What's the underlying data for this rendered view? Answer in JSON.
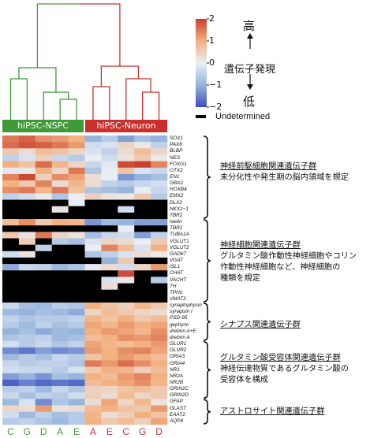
{
  "group_labels": {
    "nspc": "hiPSC-NSPC",
    "neuron": "hiPSC-Neuron"
  },
  "colors": {
    "nspc": "#3f9b35",
    "neuron": "#c9302c",
    "low": "#3b4cc0",
    "mid": "#e9eef5",
    "high": "#c8412e",
    "undetermined": "#000000"
  },
  "columns": {
    "nspc": [
      "C",
      "G",
      "D",
      "A",
      "E"
    ],
    "neuron": [
      "A",
      "E",
      "C",
      "G",
      "D"
    ]
  },
  "legend": {
    "ticks": [
      "2",
      "1",
      "0",
      "−1",
      "−2"
    ],
    "high_label": "高",
    "low_label": "低",
    "title": "遺伝子発現",
    "undetermined": "Undetermined"
  },
  "genes": [
    "SOX1",
    "PAX6",
    "BLBP",
    "NES",
    "FOXG1",
    "OTX2",
    "EN1",
    "GBX2",
    "HOXB4",
    "EMX2",
    "DLX2",
    "NKX2−1",
    "TBR2",
    "reelin",
    "TBR1",
    "TUBA1A",
    "VGLUT1",
    "VGLUT2",
    "GAD67",
    "VGAT",
    "ISL1",
    "CHAT",
    "VACHT",
    "TH",
    "TPH2",
    "VMAT2",
    "synaptophysin",
    "synapsin I",
    "PSD-95",
    "gephyrin",
    "drebrin A+E",
    "drebrin A",
    "GLUR1",
    "GLUR2",
    "GRIA3",
    "GRIA4",
    "NR1",
    "NR2A",
    "NR2B",
    "GRIN2C",
    "GRIN2D",
    "GFAP",
    "GLAST",
    "EAAT2",
    "AQP4"
  ],
  "annotations": [
    {
      "heading": "神経前駆細胞関連遺伝子群",
      "text": [
        "未分化性や発生期の脳内領域を規定"
      ]
    },
    {
      "heading": "神経細胞関連遺伝子群",
      "text": [
        "グルタミン酸作動性神経細胞やコリン",
        "作動性神経細胞など、神経細胞の",
        "種類を規定"
      ]
    },
    {
      "heading": "シナプス関連遺伝子群",
      "text": []
    },
    {
      "heading": "グルタミン酸受容体関連遺伝子群",
      "text": [
        "神経伝達物質であるグルタミン酸の",
        "受容体を構成"
      ]
    },
    {
      "heading": "アストロサイト関連遺伝子群",
      "text": []
    }
  ],
  "heatmap": [
    [
      1.5,
      1.7,
      1.3,
      1.2,
      1.0,
      -1.0,
      -0.6,
      -1.2,
      -0.8,
      -1.0
    ],
    [
      1.6,
      1.8,
      1.7,
      1.5,
      1.2,
      -0.3,
      -0.2,
      0.4,
      0.1,
      -0.5
    ],
    [
      0.6,
      0.3,
      0.8,
      0.7,
      0.4,
      -0.2,
      -0.5,
      0.3,
      0.8,
      0.4
    ],
    [
      -0.5,
      -0.2,
      0.5,
      -0.4,
      -0.6,
      0.0,
      -0.3,
      0.2,
      0.6,
      0.1
    ],
    [
      1.0,
      0.7,
      1.6,
      0.9,
      0.4,
      -0.4,
      -0.1,
      1.9,
      2.0,
      1.4
    ],
    [
      -0.1,
      0.1,
      1.0,
      0.4,
      1.5,
      -0.7,
      0.0,
      0.7,
      -0.2,
      -0.4
    ],
    [
      1.4,
      1.9,
      0.5,
      1.3,
      1.1,
      0.3,
      0.0,
      -1.3,
      -1.0,
      -0.8
    ],
    [
      1.0,
      0.6,
      1.4,
      0.3,
      0.9,
      0.3,
      -0.5,
      -0.6,
      -0.4,
      -0.3
    ],
    [
      1.3,
      1.5,
      0.9,
      1.5,
      0.7,
      -0.7,
      -0.8,
      -1.0,
      0.0,
      -0.4
    ],
    [
      -0.5,
      -0.3,
      0.1,
      -0.7,
      0.0,
      0.5,
      0.2,
      0.1,
      0.6,
      -0.6
    ],
    [
      null,
      null,
      null,
      null,
      0.0,
      null,
      null,
      null,
      null,
      null
    ],
    [
      null,
      null,
      null,
      0.2,
      null,
      null,
      null,
      -0.3,
      null,
      null
    ],
    [
      null,
      null,
      null,
      null,
      null,
      null,
      null,
      null,
      null,
      null
    ],
    [
      0.8,
      1.3,
      0.6,
      1.0,
      0.9,
      -1.3,
      -0.9,
      -1.0,
      -1.2,
      -1.2
    ],
    [
      null,
      null,
      null,
      null,
      null,
      null,
      null,
      0.0,
      null,
      null
    ],
    [
      0.6,
      0.2,
      1.5,
      0.4,
      0.2,
      -0.8,
      -0.4,
      -0.3,
      -1.2,
      -0.5
    ],
    [
      null,
      0.5,
      null,
      -0.6,
      -0.8,
      -0.2,
      0.4,
      0.3,
      0.0,
      0.6
    ],
    [
      null,
      null,
      -0.5,
      null,
      null,
      0.0,
      1.4,
      0.8,
      -0.2,
      1.0
    ],
    [
      -0.3,
      0.2,
      null,
      null,
      null,
      -0.7,
      -0.5,
      -0.2,
      0.3,
      0.1
    ],
    [
      null,
      null,
      null,
      null,
      null,
      null,
      -1.0,
      0.6,
      null,
      null
    ],
    [
      -1.1,
      -0.4,
      -0.5,
      -0.9,
      -0.7,
      0.1,
      0.3,
      -0.3,
      0.4,
      1.2
    ],
    [
      null,
      null,
      null,
      null,
      null,
      null,
      null,
      1.9,
      null,
      null
    ],
    [
      null,
      null,
      null,
      null,
      null,
      null,
      -0.2,
      0.1,
      null,
      -0.6
    ],
    [
      null,
      null,
      null,
      null,
      null,
      null,
      0.3,
      null,
      null,
      null
    ],
    [
      null,
      null,
      null,
      null,
      null,
      null,
      null,
      null,
      null,
      null
    ],
    [
      null,
      null,
      null,
      null,
      null,
      null,
      null,
      null,
      null,
      null
    ],
    [
      -0.4,
      -0.8,
      -0.9,
      -0.6,
      -0.7,
      1.0,
      0.7,
      0.5,
      0.9,
      0.6
    ],
    [
      -0.9,
      -1.0,
      -0.8,
      -0.9,
      -1.1,
      0.4,
      0.8,
      0.6,
      0.4,
      0.3
    ],
    [
      -0.5,
      -0.7,
      -0.6,
      -0.6,
      -0.5,
      0.9,
      0.7,
      1.0,
      0.6,
      0.8
    ],
    [
      -0.6,
      -0.9,
      -0.5,
      -0.8,
      -0.6,
      1.1,
      0.9,
      1.2,
      1.0,
      1.1
    ],
    [
      -1.0,
      -0.8,
      -1.1,
      -0.9,
      -1.0,
      1.0,
      1.2,
      1.1,
      0.9,
      1.3
    ],
    [
      -0.7,
      -0.6,
      -0.5,
      -0.9,
      -0.8,
      0.8,
      1.0,
      1.3,
      1.2,
      1.4
    ],
    [
      -0.3,
      -0.6,
      -0.4,
      -0.7,
      -0.5,
      1.1,
      0.9,
      0.8,
      1.0,
      1.2
    ],
    [
      -1.4,
      -1.6,
      -1.2,
      -1.4,
      -1.3,
      1.2,
      1.0,
      1.3,
      1.4,
      1.1
    ],
    [
      -0.9,
      -0.6,
      -0.8,
      -0.4,
      -0.6,
      0.7,
      1.0,
      1.2,
      1.0,
      0.8
    ],
    [
      -0.4,
      -0.6,
      -0.5,
      -0.5,
      -0.7,
      1.5,
      1.2,
      1.6,
      1.3,
      1.0
    ],
    [
      -0.3,
      -0.4,
      -0.4,
      -0.6,
      -0.2,
      0.6,
      1.0,
      0.9,
      0.5,
      0.8
    ],
    [
      -1.2,
      -1.0,
      -1.3,
      -0.8,
      -1.0,
      1.0,
      0.8,
      1.2,
      1.4,
      1.0
    ],
    [
      -1.8,
      -1.5,
      -1.7,
      -1.6,
      -1.7,
      0.8,
      1.0,
      1.1,
      1.3,
      0.9
    ],
    [
      -0.6,
      -0.5,
      -0.9,
      -0.4,
      -0.7,
      0.5,
      0.4,
      0.7,
      0.8,
      0.6
    ],
    [
      -0.4,
      -0.8,
      -0.5,
      -0.6,
      -0.3,
      0.5,
      0.3,
      0.8,
      0.4,
      0.6
    ],
    [
      -0.9,
      -0.2,
      -1.4,
      -0.7,
      -1.0,
      0.3,
      1.1,
      0.4,
      0.9,
      0.2
    ],
    [
      0.4,
      0.3,
      1.2,
      0.2,
      0.3,
      0.8,
      1.0,
      0.7,
      0.6,
      1.2
    ],
    [
      -0.3,
      -0.9,
      -0.5,
      -0.8,
      -0.6,
      0.9,
      0.3,
      0.5,
      1.0,
      0.7
    ],
    [
      -0.6,
      -0.5,
      -0.7,
      -0.9,
      -0.6,
      1.0,
      0.6,
      0.8,
      0.5,
      1.1
    ]
  ]
}
